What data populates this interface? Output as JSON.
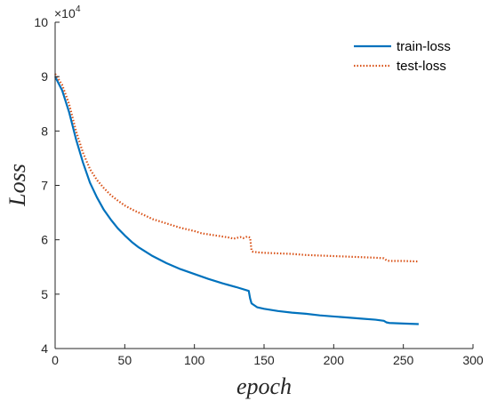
{
  "chart_data": {
    "type": "line",
    "xlabel": "epoch",
    "ylabel": "Loss",
    "xlim": [
      0,
      300
    ],
    "ylim": [
      4,
      10
    ],
    "x_ticks": [
      "0",
      "50",
      "100",
      "150",
      "200",
      "250",
      "300"
    ],
    "y_ticks": [
      "4",
      "5",
      "6",
      "7",
      "8",
      "9",
      "10"
    ],
    "y_multiplier": {
      "base": "×10",
      "exponent": "4"
    },
    "legend_position": "top-right",
    "grid": false,
    "series": [
      {
        "name": "train-loss",
        "color": "#0072BD",
        "style": "solid",
        "x": [
          0,
          5,
          10,
          15,
          20,
          25,
          30,
          35,
          40,
          45,
          50,
          55,
          60,
          70,
          80,
          90,
          100,
          110,
          120,
          130,
          139,
          140,
          141,
          145,
          150,
          160,
          170,
          180,
          190,
          200,
          210,
          220,
          230,
          236,
          238,
          240,
          250,
          261
        ],
        "y": [
          9.0,
          8.75,
          8.35,
          7.85,
          7.42,
          7.05,
          6.78,
          6.55,
          6.37,
          6.21,
          6.08,
          5.96,
          5.86,
          5.7,
          5.57,
          5.46,
          5.37,
          5.28,
          5.2,
          5.13,
          5.06,
          4.92,
          4.83,
          4.76,
          4.73,
          4.69,
          4.66,
          4.64,
          4.61,
          4.59,
          4.57,
          4.55,
          4.53,
          4.51,
          4.48,
          4.47,
          4.46,
          4.45
        ]
      },
      {
        "name": "test-loss",
        "color": "#D95319",
        "style": "dotted",
        "x": [
          0,
          5,
          10,
          15,
          20,
          25,
          30,
          35,
          40,
          45,
          50,
          55,
          60,
          70,
          80,
          90,
          100,
          105,
          110,
          115,
          120,
          125,
          128,
          130,
          133,
          135,
          138,
          140,
          141,
          142,
          145,
          150,
          160,
          170,
          180,
          190,
          200,
          210,
          220,
          230,
          236,
          238,
          240,
          250,
          261
        ],
        "y": [
          9.05,
          8.85,
          8.5,
          8.0,
          7.6,
          7.3,
          7.1,
          6.95,
          6.82,
          6.72,
          6.63,
          6.56,
          6.5,
          6.38,
          6.3,
          6.22,
          6.16,
          6.12,
          6.1,
          6.08,
          6.06,
          6.04,
          6.02,
          6.03,
          6.05,
          6.03,
          6.06,
          6.04,
          5.8,
          5.78,
          5.77,
          5.76,
          5.75,
          5.74,
          5.72,
          5.71,
          5.7,
          5.69,
          5.68,
          5.67,
          5.66,
          5.62,
          5.61,
          5.61,
          5.6
        ]
      }
    ]
  }
}
